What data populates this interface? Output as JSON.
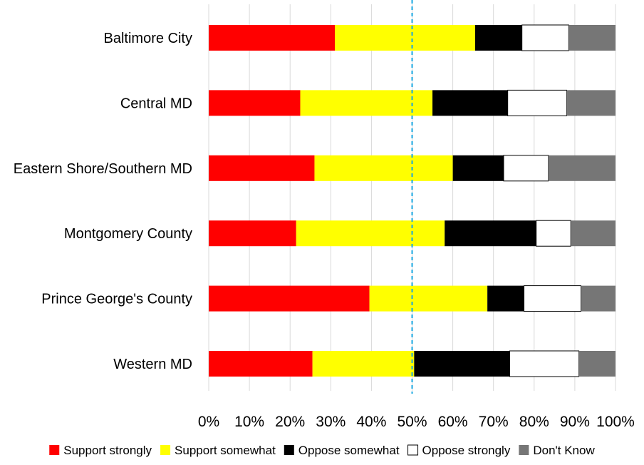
{
  "chart_data": {
    "type": "bar",
    "orientation": "horizontal",
    "stacked": true,
    "normalized": true,
    "categories": [
      "Baltimore City",
      "Central MD",
      "Eastern Shore/Southern MD",
      "Montgomery County",
      "Prince George's County",
      "Western MD"
    ],
    "series": [
      {
        "name": "Support strongly",
        "color": "#ff0000",
        "values": [
          31,
          22.5,
          26,
          21.5,
          39.5,
          25.5
        ]
      },
      {
        "name": "Support somewhat",
        "color": "#ffff00",
        "values": [
          34.5,
          32.5,
          34,
          36.5,
          29,
          25
        ]
      },
      {
        "name": "Oppose somewhat",
        "color": "#000000",
        "values": [
          11.5,
          18.5,
          12.5,
          22.5,
          9,
          23.5
        ]
      },
      {
        "name": "Oppose strongly",
        "color": "#ffffff",
        "values": [
          11.5,
          14.5,
          11,
          8.5,
          14,
          17
        ]
      },
      {
        "name": "Don't Know",
        "color": "#767676",
        "values": [
          11.5,
          12,
          16.5,
          11,
          8.5,
          9
        ]
      }
    ],
    "x_ticks": [
      "0%",
      "10%",
      "20%",
      "30%",
      "40%",
      "50%",
      "60%",
      "70%",
      "80%",
      "90%",
      "100%"
    ],
    "xlim": [
      0,
      100
    ],
    "reference_line": {
      "value": 50,
      "color": "#1aa7e0",
      "style": "dashed"
    },
    "grid": {
      "vertical": true,
      "color": "#d9d9d9"
    },
    "legend": {
      "position": "bottom"
    }
  }
}
